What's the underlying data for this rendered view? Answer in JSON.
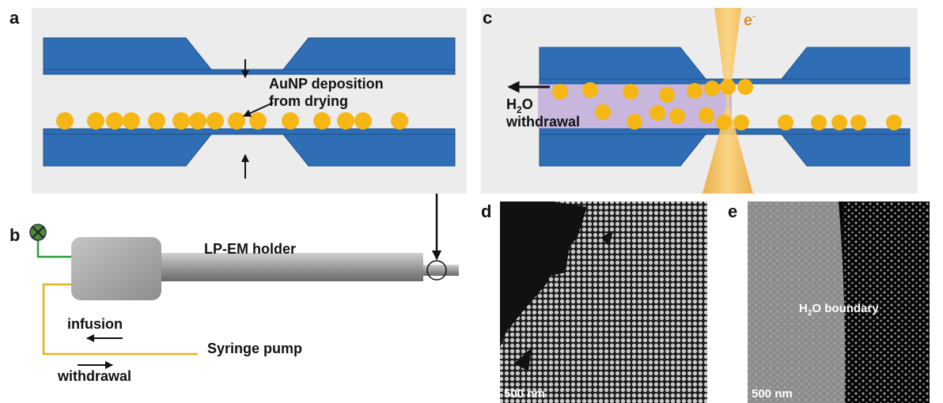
{
  "panels": {
    "a": {
      "label": "a",
      "annotation": [
        "AuNP deposition",
        "from drying"
      ]
    },
    "b": {
      "label": "b",
      "holder": "LP-EM holder",
      "infusion": "infusion",
      "pump": "Syringe pump",
      "withdrawal": "withdrawal"
    },
    "c": {
      "label": "c",
      "beam": {
        "base": "e",
        "sup": "-"
      },
      "water": {
        "h": "H",
        "sub": "2",
        "o": "O",
        "line2": "withdrawal"
      }
    },
    "d": {
      "label": "d",
      "scale": "500 nm"
    },
    "e": {
      "label": "e",
      "scale": "500 nm",
      "boundary": {
        "h": "H",
        "sub": "2",
        "rest": "O boundary"
      }
    }
  }
}
